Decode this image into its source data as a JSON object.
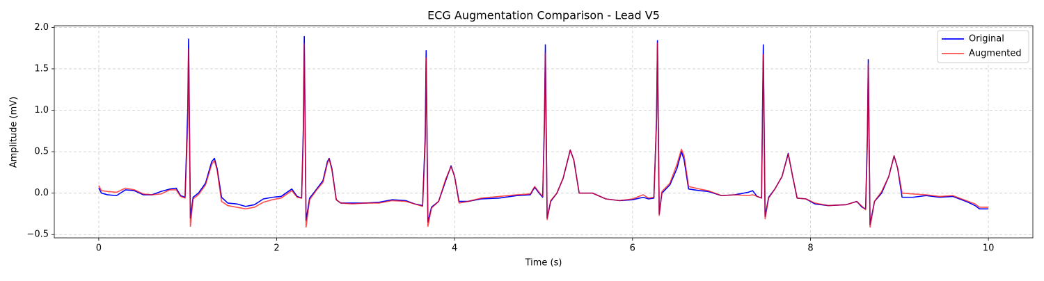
{
  "chart_data": {
    "type": "line",
    "title": "ECG Augmentation Comparison - Lead V5",
    "x_label": "Time (s)",
    "y_label": "Amplitude (mV)",
    "x": [
      0,
      0.03,
      0.1,
      0.2,
      0.3,
      0.4,
      0.5,
      0.6,
      0.7,
      0.8,
      0.87,
      0.92,
      0.97,
      1.0,
      1.01,
      1.03,
      1.06,
      1.12,
      1.2,
      1.27,
      1.3,
      1.33,
      1.38,
      1.45,
      1.55,
      1.65,
      1.75,
      1.85,
      1.95,
      2.05,
      2.17,
      2.23,
      2.28,
      2.3,
      2.31,
      2.33,
      2.37,
      2.45,
      2.52,
      2.57,
      2.59,
      2.62,
      2.67,
      2.72,
      2.85,
      3.0,
      3.15,
      3.3,
      3.45,
      3.55,
      3.64,
      3.67,
      3.68,
      3.7,
      3.74,
      3.82,
      3.9,
      3.96,
      4.0,
      4.05,
      4.15,
      4.3,
      4.5,
      4.7,
      4.85,
      4.9,
      4.95,
      4.99,
      5.01,
      5.02,
      5.04,
      5.08,
      5.15,
      5.22,
      5.3,
      5.34,
      5.4,
      5.55,
      5.7,
      5.85,
      6.0,
      6.12,
      6.18,
      6.24,
      6.27,
      6.28,
      6.3,
      6.33,
      6.42,
      6.5,
      6.55,
      6.58,
      6.63,
      6.75,
      6.85,
      7.0,
      7.15,
      7.3,
      7.35,
      7.4,
      7.45,
      7.46,
      7.47,
      7.49,
      7.53,
      7.6,
      7.68,
      7.75,
      7.8,
      7.85,
      7.95,
      8.05,
      8.2,
      8.4,
      8.52,
      8.58,
      8.62,
      8.64,
      8.65,
      8.67,
      8.72,
      8.8,
      8.88,
      8.94,
      8.98,
      9.03,
      9.15,
      9.3,
      9.45,
      9.6,
      9.75,
      9.85,
      9.9,
      10.0
    ],
    "series": [
      {
        "name": "Original",
        "color": "#0000ff",
        "values": [
          0.06,
          0.0,
          -0.02,
          -0.03,
          0.04,
          0.03,
          -0.02,
          -0.02,
          0.02,
          0.05,
          0.06,
          -0.03,
          -0.05,
          1.0,
          1.86,
          -0.3,
          -0.05,
          0.0,
          0.12,
          0.38,
          0.42,
          0.3,
          -0.05,
          -0.12,
          -0.13,
          -0.16,
          -0.14,
          -0.07,
          -0.05,
          -0.04,
          0.05,
          -0.04,
          -0.06,
          0.8,
          1.89,
          -0.33,
          -0.06,
          0.05,
          0.15,
          0.38,
          0.42,
          0.3,
          -0.08,
          -0.12,
          -0.12,
          -0.12,
          -0.11,
          -0.08,
          -0.09,
          -0.13,
          -0.15,
          0.7,
          1.72,
          -0.35,
          -0.17,
          -0.1,
          0.15,
          0.33,
          0.2,
          -0.1,
          -0.1,
          -0.07,
          -0.06,
          -0.03,
          -0.02,
          0.07,
          0.0,
          -0.05,
          0.9,
          1.79,
          -0.3,
          -0.1,
          0.0,
          0.18,
          0.52,
          0.4,
          0.0,
          0.0,
          -0.07,
          -0.09,
          -0.08,
          -0.05,
          -0.07,
          -0.06,
          0.9,
          1.84,
          -0.25,
          0.0,
          0.1,
          0.3,
          0.5,
          0.4,
          0.05,
          0.03,
          0.02,
          -0.03,
          -0.02,
          0.01,
          0.03,
          -0.04,
          -0.06,
          0.9,
          1.79,
          -0.28,
          -0.05,
          0.05,
          0.2,
          0.48,
          0.2,
          -0.06,
          -0.07,
          -0.13,
          -0.15,
          -0.14,
          -0.1,
          -0.17,
          -0.19,
          0.7,
          1.61,
          -0.38,
          -0.1,
          0.0,
          0.2,
          0.45,
          0.3,
          -0.05,
          -0.05,
          -0.03,
          -0.05,
          -0.04,
          -0.1,
          -0.15,
          -0.19,
          -0.19
        ]
      },
      {
        "name": "Augmented",
        "color": "#ff0000",
        "values": [
          0.09,
          0.03,
          0.02,
          0.01,
          0.06,
          0.04,
          -0.01,
          -0.02,
          -0.01,
          0.04,
          0.04,
          -0.04,
          -0.06,
          0.8,
          1.74,
          -0.4,
          -0.07,
          -0.02,
          0.1,
          0.35,
          0.39,
          0.28,
          -0.1,
          -0.15,
          -0.17,
          -0.19,
          -0.17,
          -0.11,
          -0.08,
          -0.06,
          0.03,
          -0.05,
          -0.06,
          0.7,
          1.8,
          -0.41,
          -0.08,
          0.04,
          0.13,
          0.36,
          0.41,
          0.28,
          -0.08,
          -0.12,
          -0.13,
          -0.12,
          -0.12,
          -0.09,
          -0.1,
          -0.13,
          -0.16,
          0.6,
          1.63,
          -0.4,
          -0.18,
          -0.1,
          0.17,
          0.32,
          0.2,
          -0.12,
          -0.1,
          -0.06,
          -0.04,
          -0.02,
          -0.01,
          0.08,
          0.01,
          -0.04,
          0.8,
          1.69,
          -0.32,
          -0.09,
          0.0,
          0.18,
          0.52,
          0.4,
          0.0,
          0.0,
          -0.07,
          -0.09,
          -0.07,
          -0.02,
          -0.06,
          -0.05,
          0.85,
          1.81,
          -0.27,
          0.02,
          0.12,
          0.35,
          0.53,
          0.45,
          0.08,
          0.05,
          0.03,
          -0.03,
          -0.02,
          -0.03,
          -0.02,
          -0.04,
          -0.06,
          0.8,
          1.67,
          -0.31,
          -0.06,
          0.05,
          0.2,
          0.47,
          0.2,
          -0.06,
          -0.07,
          -0.12,
          -0.15,
          -0.14,
          -0.1,
          -0.16,
          -0.2,
          0.6,
          1.56,
          -0.41,
          -0.1,
          0.02,
          0.2,
          0.45,
          0.3,
          0.0,
          -0.01,
          -0.02,
          -0.04,
          -0.03,
          -0.09,
          -0.13,
          -0.17,
          -0.17
        ]
      }
    ],
    "xlim": [
      -0.5,
      10.5
    ],
    "xticks": [
      0,
      2,
      4,
      6,
      8,
      10
    ],
    "ylim": [
      -0.54,
      2.02
    ],
    "yticks": [
      {
        "value": -0.5,
        "label": "−0.5"
      },
      {
        "value": 0,
        "label": "0.0"
      },
      {
        "value": 0.5,
        "label": "0.5"
      },
      {
        "value": 1,
        "label": "1.0"
      },
      {
        "value": 1.5,
        "label": "1.5"
      },
      {
        "value": 2,
        "label": "2.0"
      }
    ],
    "grid": true,
    "legend": "upper right"
  }
}
